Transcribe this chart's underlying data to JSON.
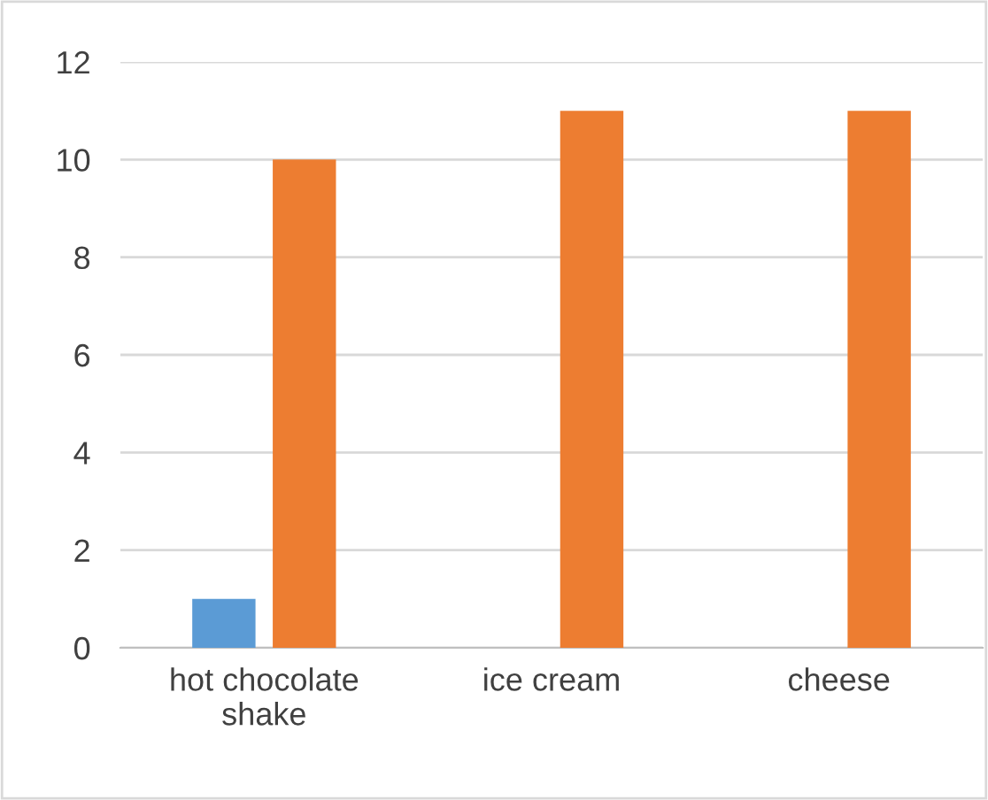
{
  "chart_data": {
    "type": "bar",
    "categories": [
      "hot chocolate\nshake",
      "ice cream",
      "cheese"
    ],
    "series": [
      {
        "color": "#5b9bd5",
        "values": [
          1,
          null,
          null
        ]
      },
      {
        "color": "#ed7d31",
        "values": [
          10,
          11,
          11
        ]
      }
    ],
    "ylim": [
      0,
      12
    ],
    "yticks": [
      0,
      2,
      4,
      6,
      8,
      10,
      12
    ],
    "grid": "y",
    "legend": false
  }
}
